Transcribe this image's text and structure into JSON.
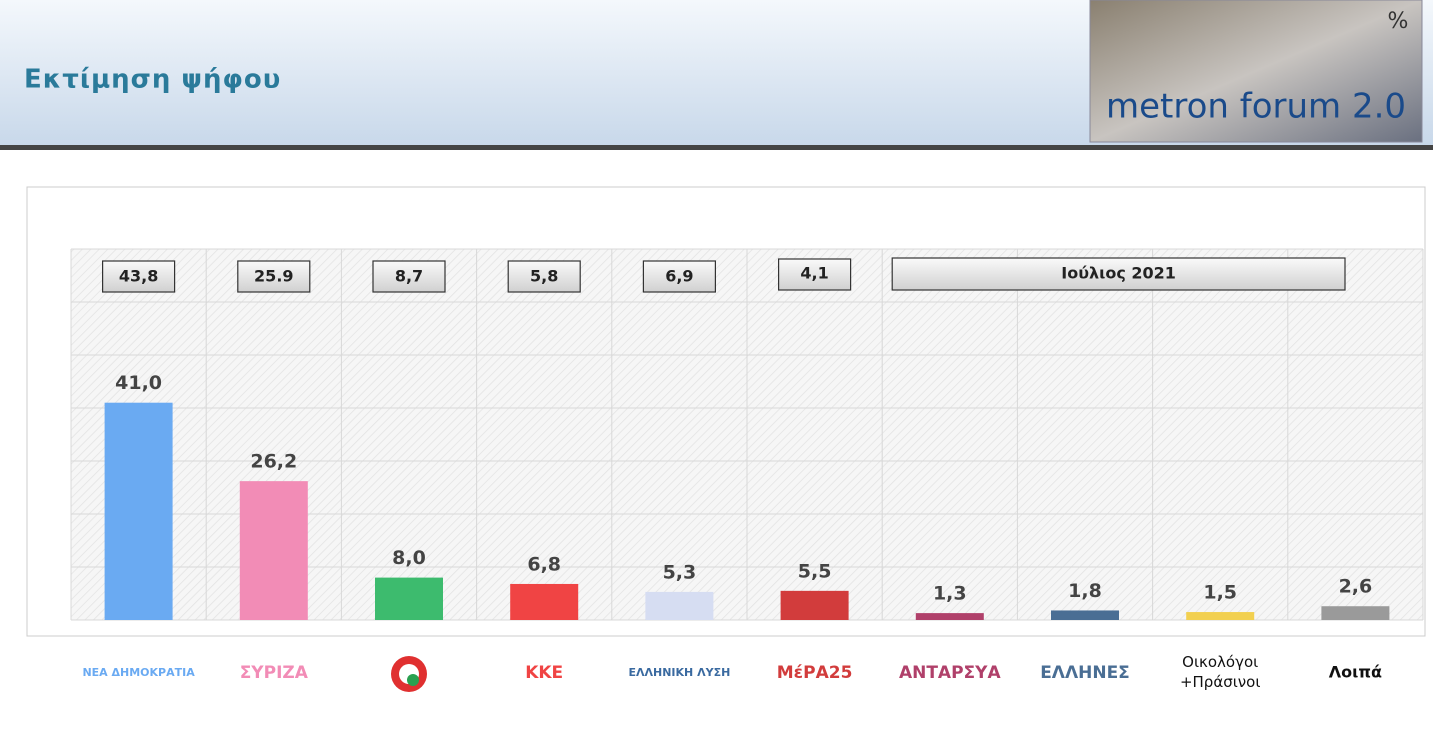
{
  "header": {
    "title": "Εκτίμηση ψήφου",
    "brand": "metron forum 2.0",
    "brand_mark": "%"
  },
  "chart_data": {
    "type": "bar",
    "categories": [
      "ΝΕΑ ΔΗΜΟΚΡΑΤΙΑ",
      "ΣΥΡΙΖΑ",
      null,
      "ΚΚΕ",
      "ΕΛΛΗΝΙΚΗ ΛΥΣΗ",
      "ΜέΡΑ25",
      "ΑΝΤΑΡΣΥΑ",
      "ΕΛΛΗΝΕΣ",
      "Οικολόγοι +Πράσινοι",
      "Λοιπά"
    ],
    "values": [
      41.0,
      26.2,
      8.0,
      6.8,
      5.3,
      5.5,
      1.3,
      1.8,
      1.5,
      2.6
    ],
    "value_labels": [
      "41,0",
      "26,2",
      "8,0",
      "6,8",
      "5,3",
      "5,5",
      "1,3",
      "1,8",
      "1,5",
      "2,6"
    ],
    "colors": [
      "#6aaaf2",
      "#f28cb6",
      "#3dbb6e",
      "#f04444",
      "#d6ddf2",
      "#d23c3c",
      "#b0406a",
      "#4a6e94",
      "#f2d050",
      "#9a9a9a"
    ],
    "previous": {
      "name": "Ιούλιος 2021",
      "values": [
        43.8,
        25.9,
        8.7,
        5.8,
        6.9,
        4.1,
        null,
        null,
        null,
        null
      ],
      "value_labels": [
        "43,8",
        "25.9",
        "8,7",
        "5,8",
        "6,9",
        "4,1",
        null,
        null,
        null,
        null
      ]
    },
    "ylim": [
      0,
      70
    ],
    "yticks": [
      0,
      10,
      20,
      30,
      40,
      50,
      60,
      70
    ],
    "grid": true
  }
}
